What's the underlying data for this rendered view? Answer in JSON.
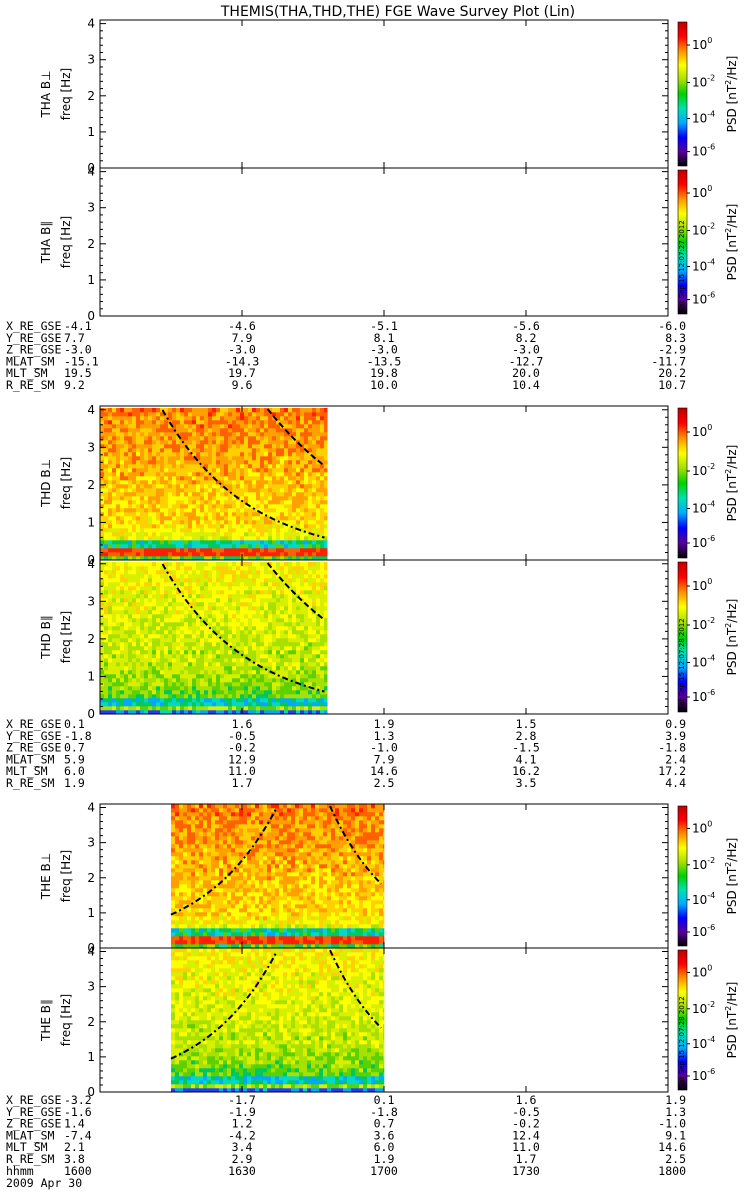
{
  "chart_data": {
    "type": "heatmap",
    "title": "THEMIS(THA,THD,THE) FGE Wave Survey Plot (Lin)",
    "ylabel_common": "freq [Hz]",
    "ylim": [
      0,
      4.1
    ],
    "y_ticks": [
      "0",
      "1",
      "2",
      "3",
      "4"
    ],
    "colorbar": {
      "label": "PSD [nT²/Hz]",
      "label_text": "PSD [nT",
      "label_sup": "2",
      "label_end": "/Hz]",
      "scale": "log",
      "ticks": [
        {
          "base": "10",
          "exp": "0"
        },
        {
          "base": "10",
          "exp": "-2"
        },
        {
          "base": "10",
          "exp": "-4"
        },
        {
          "base": "10",
          "exp": "-6"
        }
      ],
      "colors": [
        "#000000",
        "#5a009a",
        "#0000ff",
        "#00aaff",
        "#00e0b0",
        "#00d000",
        "#a8e000",
        "#ffff00",
        "#ff9000",
        "#ff0000",
        "#c00000"
      ]
    },
    "x": [
      "1600",
      "1630",
      "1700",
      "1730",
      "1800"
    ],
    "x_label": "hhmm",
    "date": "2009 Apr 30",
    "panels": [
      {
        "ylabel": "THA B⊥",
        "has_data": false
      },
      {
        "ylabel": "THA B∥",
        "has_data": false,
        "stamp": "Sat Sep 15 12:07:27 2012"
      },
      {
        "ylabel": "THD B⊥",
        "has_data": true,
        "x_start": 0,
        "x_end": 1.6,
        "stamp": ""
      },
      {
        "ylabel": "THD B∥",
        "has_data": true,
        "x_start": 0,
        "x_end": 1.6,
        "stamp": "Sat Sep 15 12:07:28 2012"
      },
      {
        "ylabel": "THE B⊥",
        "has_data": true,
        "x_start": 0.5,
        "x_end": 2,
        "stamp": ""
      },
      {
        "ylabel": "THE B∥",
        "has_data": true,
        "x_start": 0.5,
        "x_end": 2,
        "stamp": "Sat Sep 15 12:07:28 2012"
      }
    ],
    "ephemeris": [
      {
        "probe": "THA",
        "rows": [
          {
            "name": "X_RE_GSE",
            "values": [
              "-4.1",
              "-4.6",
              "-5.1",
              "-5.6",
              "-6.0"
            ]
          },
          {
            "name": "Y_RE_GSE",
            "values": [
              "7.7",
              "7.9",
              "8.1",
              "8.2",
              "8.3"
            ]
          },
          {
            "name": "Z_RE_GSE",
            "values": [
              "-3.0",
              "-3.0",
              "-3.0",
              "-3.0",
              "-2.9"
            ]
          },
          {
            "name": "MLAT_SM",
            "values": [
              "-15.1",
              "-14.3",
              "-13.5",
              "-12.7",
              "-11.7"
            ]
          },
          {
            "name": "MLT_SM",
            "values": [
              "19.5",
              "19.7",
              "19.8",
              "20.0",
              "20.2"
            ]
          },
          {
            "name": "R_RE_SM",
            "values": [
              "9.2",
              "9.6",
              "10.0",
              "10.4",
              "10.7"
            ]
          }
        ]
      },
      {
        "probe": "THD",
        "rows": [
          {
            "name": "X_RE_GSE",
            "values": [
              "0.1",
              "1.6",
              "1.9",
              "1.5",
              "0.9"
            ]
          },
          {
            "name": "Y_RE_GSE",
            "values": [
              "-1.8",
              "-0.5",
              "1.3",
              "2.8",
              "3.9"
            ]
          },
          {
            "name": "Z_RE_GSE",
            "values": [
              "0.7",
              "-0.2",
              "-1.0",
              "-1.5",
              "-1.8"
            ]
          },
          {
            "name": "MLAT_SM",
            "values": [
              "5.9",
              "12.9",
              "7.9",
              "4.1",
              "2.4"
            ]
          },
          {
            "name": "MLT_SM",
            "values": [
              "6.0",
              "11.0",
              "14.6",
              "16.2",
              "17.2"
            ]
          },
          {
            "name": "R_RE_SM",
            "values": [
              "1.9",
              "1.7",
              "2.5",
              "3.5",
              "4.4"
            ]
          }
        ]
      },
      {
        "probe": "THE",
        "rows": [
          {
            "name": "X_RE_GSE",
            "values": [
              "-3.2",
              "-1.7",
              "0.1",
              "1.6",
              "1.9"
            ]
          },
          {
            "name": "Y_RE_GSE",
            "values": [
              "-1.6",
              "-1.9",
              "-1.8",
              "-0.5",
              "1.3"
            ]
          },
          {
            "name": "Z_RE_GSE",
            "values": [
              "1.4",
              "1.2",
              "0.7",
              "-0.2",
              "-1.0"
            ]
          },
          {
            "name": "MLAT_SM",
            "values": [
              "-7.4",
              "-4.2",
              "3.6",
              "12.4",
              "9.1"
            ]
          },
          {
            "name": "MLT_SM",
            "values": [
              "2.1",
              "3.4",
              "6.0",
              "11.0",
              "14.6"
            ]
          },
          {
            "name": "R_RE_SM",
            "values": [
              "3.8",
              "2.9",
              "1.9",
              "1.7",
              "2.5"
            ]
          }
        ]
      }
    ]
  }
}
